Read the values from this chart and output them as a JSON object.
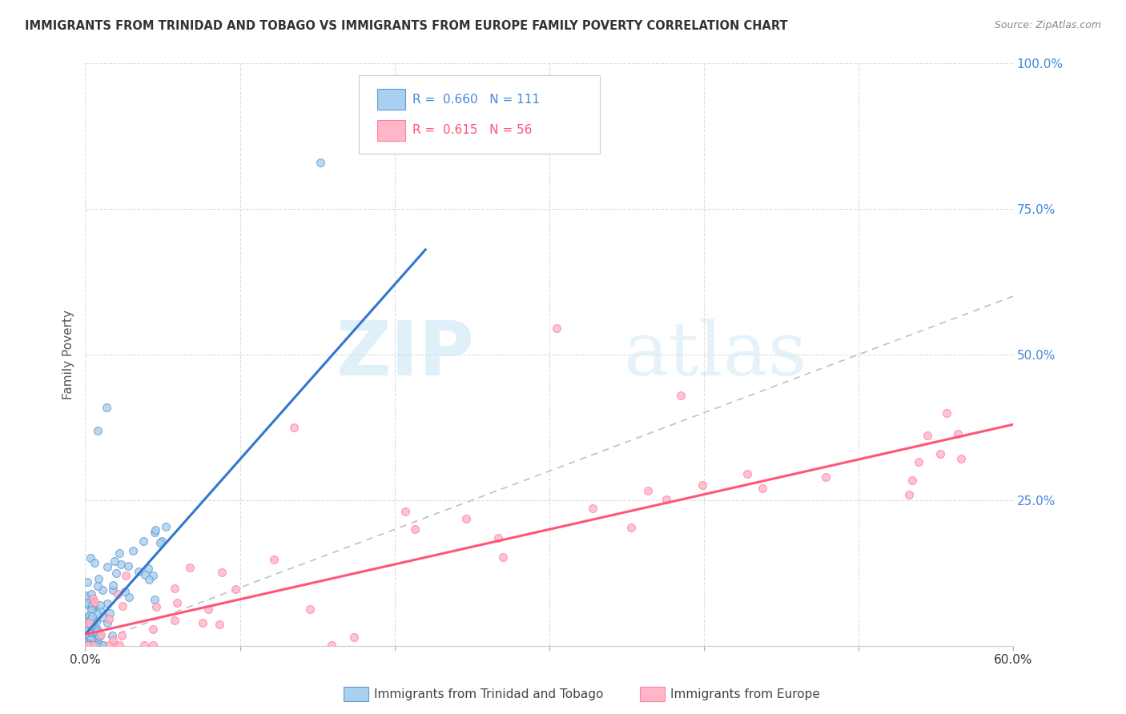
{
  "title": "IMMIGRANTS FROM TRINIDAD AND TOBAGO VS IMMIGRANTS FROM EUROPE FAMILY POVERTY CORRELATION CHART",
  "source": "Source: ZipAtlas.com",
  "ylabel": "Family Poverty",
  "xlim": [
    0,
    0.6
  ],
  "ylim": [
    0,
    1.0
  ],
  "blue_color": "#A8D0F0",
  "blue_edge_color": "#6699CC",
  "pink_color": "#FFB6C8",
  "pink_edge_color": "#FF8099",
  "blue_R": 0.66,
  "blue_N": 111,
  "pink_R": 0.615,
  "pink_N": 56,
  "blue_trend_x": [
    0.0,
    0.22
  ],
  "blue_trend_y": [
    0.02,
    0.68
  ],
  "pink_trend_x": [
    0.0,
    0.6
  ],
  "pink_trend_y": [
    0.02,
    0.38
  ],
  "watermark_zip": "ZIP",
  "watermark_atlas": "atlas",
  "legend_label_blue": "Immigrants from Trinidad and Tobago",
  "legend_label_pink": "Immigrants from Europe"
}
